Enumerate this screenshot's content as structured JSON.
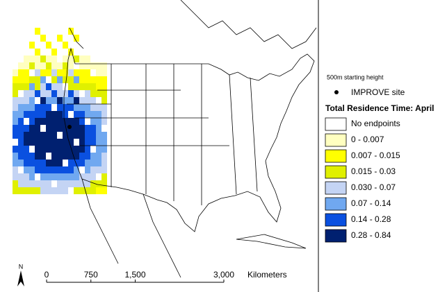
{
  "legend": {
    "height_note": "500m starting height",
    "site_label": "IMPROVE site",
    "title": "Total Residence Time: April",
    "items": [
      {
        "label": "No endpoints",
        "color": "#ffffff"
      },
      {
        "label": "0 - 0.007",
        "color": "#ffffc0"
      },
      {
        "label": "0.007 - 0.015",
        "color": "#ffff00"
      },
      {
        "label": "0.015 - 0.03",
        "color": "#e0f000"
      },
      {
        "label": "0.030 - 0.07",
        "color": "#c4d4f4"
      },
      {
        "label": "0.07 - 0.14",
        "color": "#70a8f0"
      },
      {
        "label": "0.14 - 0.28",
        "color": "#0a50e0"
      },
      {
        "label": "0.28 - 0.84",
        "color": "#002070"
      }
    ]
  },
  "scale_bar": {
    "ticks": [
      0,
      750,
      {
        "value": 1500,
        "label": "1,500"
      },
      {
        "value": 3000,
        "label": "3,000"
      }
    ],
    "unit": "Kilometers"
  },
  "north_arrow": "N"
}
